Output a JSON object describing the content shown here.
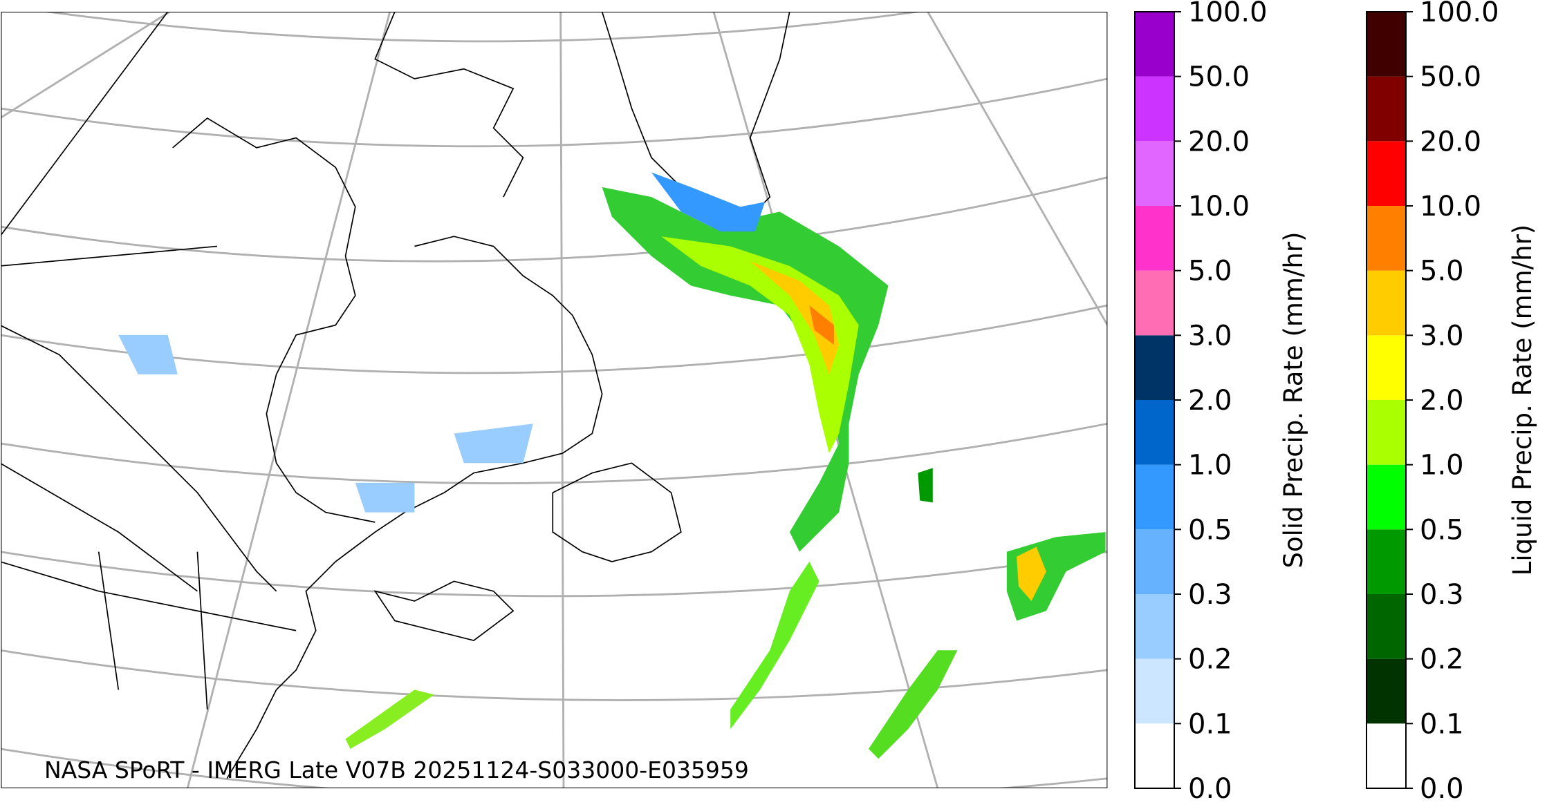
{
  "caption": "NASA SPoRT - IMERG Late V07B 20251124-S033000-E035959",
  "colorbars": [
    {
      "label": "Solid Precip. Rate (mm/hr)",
      "colors": [
        "#ffffff",
        "#cce6ff",
        "#99ccff",
        "#66b2ff",
        "#3399ff",
        "#0066cc",
        "#003366",
        "#ff6eb4",
        "#ff33cc",
        "#e066ff",
        "#cc33ff",
        "#9900cc"
      ],
      "ticks": [
        {
          "value": 0,
          "label": "0.0"
        },
        {
          "value": 0.1,
          "label": "0.1"
        },
        {
          "value": 0.2,
          "label": "0.2"
        },
        {
          "value": 0.3,
          "label": "0.3"
        },
        {
          "value": 0.5,
          "label": "0.5"
        },
        {
          "value": 1,
          "label": "1.0"
        },
        {
          "value": 2,
          "label": "2.0"
        },
        {
          "value": 3,
          "label": "3.0"
        },
        {
          "value": 5,
          "label": "5.0"
        },
        {
          "value": 10,
          "label": "10.0"
        },
        {
          "value": 20,
          "label": "20.0"
        },
        {
          "value": 50,
          "label": "50.0"
        },
        {
          "value": 100,
          "label": "100.0"
        }
      ]
    },
    {
      "label": "Liquid Precip. Rate (mm/hr)",
      "colors": [
        "#ffffff",
        "#003300",
        "#006600",
        "#009900",
        "#00ff00",
        "#aaff00",
        "#ffff00",
        "#ffcc00",
        "#ff8000",
        "#ff0000",
        "#800000",
        "#400000"
      ],
      "ticks": [
        {
          "value": 0,
          "label": "0.0"
        },
        {
          "value": 0.1,
          "label": "0.1"
        },
        {
          "value": 0.2,
          "label": "0.2"
        },
        {
          "value": 0.3,
          "label": "0.3"
        },
        {
          "value": 0.5,
          "label": "0.5"
        },
        {
          "value": 1,
          "label": "1.0"
        },
        {
          "value": 2,
          "label": "2.0"
        },
        {
          "value": 3,
          "label": "3.0"
        },
        {
          "value": 5,
          "label": "5.0"
        },
        {
          "value": 10,
          "label": "10.0"
        },
        {
          "value": 20,
          "label": "20.0"
        },
        {
          "value": 50,
          "label": "50.0"
        },
        {
          "value": 100,
          "label": "100.0"
        }
      ]
    }
  ]
}
